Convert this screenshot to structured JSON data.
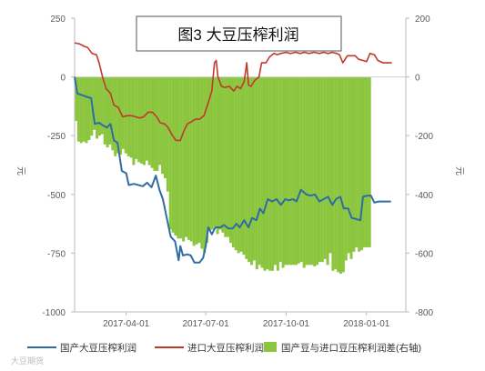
{
  "chart_data": {
    "type": "bar+line",
    "title": "图3 大豆压榨利润",
    "left_axis": {
      "label": "元",
      "range": [
        -1000,
        250
      ],
      "ticks": [
        250,
        0,
        -250,
        -500,
        -750,
        -1000
      ]
    },
    "right_axis": {
      "label": "元",
      "range": [
        -800,
        200
      ],
      "ticks": [
        200,
        0,
        -200,
        -400,
        -600,
        -800
      ]
    },
    "x_ticks": [
      "2017-04-01",
      "2017-07-01",
      "2017-10-01",
      "2018-01-01"
    ],
    "x_range": [
      "2017-02-01",
      "2018-02-15"
    ],
    "grid": false,
    "legend_position": "bottom",
    "series": [
      {
        "name": "国产大豆压榨利润",
        "type": "line",
        "axis": "left",
        "color": "#2e6da4",
        "points": [
          [
            "2017-02-01",
            0
          ],
          [
            "2017-02-04",
            -70
          ],
          [
            "2017-02-15",
            -85
          ],
          [
            "2017-02-20",
            -90
          ],
          [
            "2017-02-24",
            -200
          ],
          [
            "2017-03-01",
            -195
          ],
          [
            "2017-03-05",
            -205
          ],
          [
            "2017-03-10",
            -215
          ],
          [
            "2017-03-14",
            -200
          ],
          [
            "2017-03-18",
            -270
          ],
          [
            "2017-03-22",
            -280
          ],
          [
            "2017-03-27",
            -400
          ],
          [
            "2017-04-01",
            -410
          ],
          [
            "2017-04-04",
            -460
          ],
          [
            "2017-04-10",
            -455
          ],
          [
            "2017-04-20",
            -465
          ],
          [
            "2017-04-25",
            -450
          ],
          [
            "2017-04-30",
            -470
          ],
          [
            "2017-05-05",
            -420
          ],
          [
            "2017-05-09",
            -480
          ],
          [
            "2017-05-13",
            -520
          ],
          [
            "2017-05-18",
            -610
          ],
          [
            "2017-05-22",
            -680
          ],
          [
            "2017-05-27",
            -700
          ],
          [
            "2017-05-31",
            -780
          ],
          [
            "2017-06-02",
            -720
          ],
          [
            "2017-06-05",
            -760
          ],
          [
            "2017-06-10",
            -755
          ],
          [
            "2017-06-14",
            -760
          ],
          [
            "2017-06-18",
            -790
          ],
          [
            "2017-06-24",
            -790
          ],
          [
            "2017-06-28",
            -770
          ],
          [
            "2017-07-01",
            -720
          ],
          [
            "2017-07-04",
            -640
          ],
          [
            "2017-07-08",
            -670
          ],
          [
            "2017-07-12",
            -640
          ],
          [
            "2017-07-18",
            -640
          ],
          [
            "2017-07-22",
            -630
          ],
          [
            "2017-07-27",
            -645
          ],
          [
            "2017-08-01",
            -645
          ],
          [
            "2017-08-05",
            -625
          ],
          [
            "2017-08-09",
            -640
          ],
          [
            "2017-08-14",
            -610
          ],
          [
            "2017-08-19",
            -640
          ],
          [
            "2017-08-23",
            -600
          ],
          [
            "2017-08-28",
            -610
          ],
          [
            "2017-09-01",
            -560
          ],
          [
            "2017-09-05",
            -580
          ],
          [
            "2017-09-10",
            -520
          ],
          [
            "2017-09-15",
            -530
          ],
          [
            "2017-09-20",
            -520
          ],
          [
            "2017-09-25",
            -545
          ],
          [
            "2017-09-30",
            -520
          ],
          [
            "2017-10-04",
            -525
          ],
          [
            "2017-10-09",
            -520
          ],
          [
            "2017-10-13",
            -530
          ],
          [
            "2017-10-18",
            -480
          ],
          [
            "2017-10-24",
            -500
          ],
          [
            "2017-10-29",
            -505
          ],
          [
            "2017-11-03",
            -500
          ],
          [
            "2017-11-08",
            -530
          ],
          [
            "2017-11-13",
            -520
          ],
          [
            "2017-11-18",
            -510
          ],
          [
            "2017-11-23",
            -545
          ],
          [
            "2017-11-27",
            -520
          ],
          [
            "2017-12-02",
            -510
          ],
          [
            "2017-12-06",
            -560
          ],
          [
            "2017-12-11",
            -560
          ],
          [
            "2017-12-15",
            -600
          ],
          [
            "2017-12-20",
            -605
          ],
          [
            "2017-12-25",
            -610
          ],
          [
            "2017-12-28",
            -510
          ],
          [
            "2018-01-02",
            -505
          ],
          [
            "2018-01-06",
            -505
          ],
          [
            "2018-01-10",
            -535
          ],
          [
            "2018-01-15",
            -530
          ],
          [
            "2018-01-20",
            -530
          ],
          [
            "2018-01-25",
            -530
          ],
          [
            "2018-01-29",
            -530
          ]
        ]
      },
      {
        "name": "进口大豆压榨利润",
        "type": "line",
        "axis": "left",
        "color": "#c0392b",
        "points": [
          [
            "2017-02-01",
            145
          ],
          [
            "2017-02-07",
            140
          ],
          [
            "2017-02-12",
            130
          ],
          [
            "2017-02-16",
            125
          ],
          [
            "2017-02-21",
            100
          ],
          [
            "2017-02-26",
            95
          ],
          [
            "2017-03-01",
            60
          ],
          [
            "2017-03-05",
            0
          ],
          [
            "2017-03-09",
            -50
          ],
          [
            "2017-03-14",
            -70
          ],
          [
            "2017-03-18",
            -120
          ],
          [
            "2017-03-23",
            -130
          ],
          [
            "2017-03-28",
            -170
          ],
          [
            "2017-04-02",
            -165
          ],
          [
            "2017-04-07",
            -165
          ],
          [
            "2017-04-12",
            -170
          ],
          [
            "2017-04-16",
            -175
          ],
          [
            "2017-04-21",
            -170
          ],
          [
            "2017-04-26",
            -150
          ],
          [
            "2017-05-01",
            -150
          ],
          [
            "2017-05-06",
            -170
          ],
          [
            "2017-05-10",
            -195
          ],
          [
            "2017-05-15",
            -200
          ],
          [
            "2017-05-19",
            -215
          ],
          [
            "2017-05-24",
            -250
          ],
          [
            "2017-05-28",
            -270
          ],
          [
            "2017-06-02",
            -270
          ],
          [
            "2017-06-06",
            -230
          ],
          [
            "2017-06-10",
            -200
          ],
          [
            "2017-06-15",
            -190
          ],
          [
            "2017-06-19",
            -180
          ],
          [
            "2017-06-24",
            -180
          ],
          [
            "2017-06-29",
            -165
          ],
          [
            "2017-07-03",
            -120
          ],
          [
            "2017-07-08",
            -60
          ],
          [
            "2017-07-11",
            60
          ],
          [
            "2017-07-13",
            70
          ],
          [
            "2017-07-15",
            0
          ],
          [
            "2017-07-19",
            -40
          ],
          [
            "2017-07-23",
            -45
          ],
          [
            "2017-07-28",
            -40
          ],
          [
            "2017-08-02",
            -60
          ],
          [
            "2017-08-06",
            -40
          ],
          [
            "2017-08-10",
            -50
          ],
          [
            "2017-08-14",
            -20
          ],
          [
            "2017-08-17",
            60
          ],
          [
            "2017-08-19",
            -35
          ],
          [
            "2017-08-22",
            -40
          ],
          [
            "2017-08-26",
            -15
          ],
          [
            "2017-08-31",
            0
          ],
          [
            "2017-09-03",
            60
          ],
          [
            "2017-09-08",
            60
          ],
          [
            "2017-09-12",
            85
          ],
          [
            "2017-09-17",
            100
          ],
          [
            "2017-09-21",
            95
          ],
          [
            "2017-09-25",
            100
          ],
          [
            "2017-10-01",
            105
          ],
          [
            "2017-10-06",
            100
          ],
          [
            "2017-10-12",
            105
          ],
          [
            "2017-10-17",
            100
          ],
          [
            "2017-10-22",
            105
          ],
          [
            "2017-10-27",
            100
          ],
          [
            "2017-11-02",
            105
          ],
          [
            "2017-11-08",
            100
          ],
          [
            "2017-11-13",
            105
          ],
          [
            "2017-11-18",
            100
          ],
          [
            "2017-11-23",
            105
          ],
          [
            "2017-11-28",
            100
          ],
          [
            "2017-12-01",
            95
          ],
          [
            "2017-12-05",
            60
          ],
          [
            "2017-12-10",
            90
          ],
          [
            "2017-12-14",
            90
          ],
          [
            "2017-12-19",
            90
          ],
          [
            "2017-12-23",
            75
          ],
          [
            "2017-12-28",
            70
          ],
          [
            "2018-01-01",
            65
          ],
          [
            "2018-01-05",
            100
          ],
          [
            "2018-01-10",
            95
          ],
          [
            "2018-01-14",
            70
          ],
          [
            "2018-01-20",
            60
          ],
          [
            "2018-01-25",
            60
          ],
          [
            "2018-01-30",
            60
          ]
        ]
      },
      {
        "name": "国产豆与进口豆压榨利润差(右轴)",
        "type": "bar",
        "axis": "right",
        "color": "#8cc63f",
        "start": "2017-02-01",
        "step_days": 3,
        "values": [
          -150,
          -220,
          -225,
          -220,
          -225,
          -215,
          -200,
          -180,
          -210,
          -200,
          -195,
          -230,
          -240,
          -230,
          -250,
          -270,
          -260,
          -265,
          -245,
          -260,
          -270,
          -275,
          -300,
          -280,
          -290,
          -295,
          -300,
          -285,
          -300,
          -310,
          -320,
          -320,
          -300,
          -330,
          -345,
          -390,
          -520,
          -530,
          -540,
          -550,
          -550,
          -560,
          -545,
          -555,
          -560,
          -575,
          -570,
          -565,
          -585,
          -600,
          -565,
          -520,
          -520,
          -510,
          -535,
          -520,
          -530,
          -545,
          -545,
          -565,
          -580,
          -590,
          -600,
          -595,
          -605,
          -620,
          -630,
          -640,
          -625,
          -655,
          -640,
          -650,
          -660,
          -655,
          -660,
          -660,
          -640,
          -660,
          -630,
          -650,
          -640,
          -640,
          -640,
          -640,
          -640,
          -635,
          -630,
          -650,
          -640,
          -640,
          -640,
          -645,
          -640,
          -630,
          -630,
          -620,
          -640,
          -600,
          -660,
          -655,
          -665,
          -670,
          -665,
          -625,
          -600,
          -620,
          -595,
          -580,
          -595,
          -590,
          -580,
          -580,
          -580
        ]
      }
    ]
  },
  "legend": {
    "domestic": "国产大豆压榨利润",
    "imported": "进口大豆压榨利润",
    "diff": "国产豆与进口豆压榨利润差(右轴)"
  },
  "watermark": "大豆期货"
}
